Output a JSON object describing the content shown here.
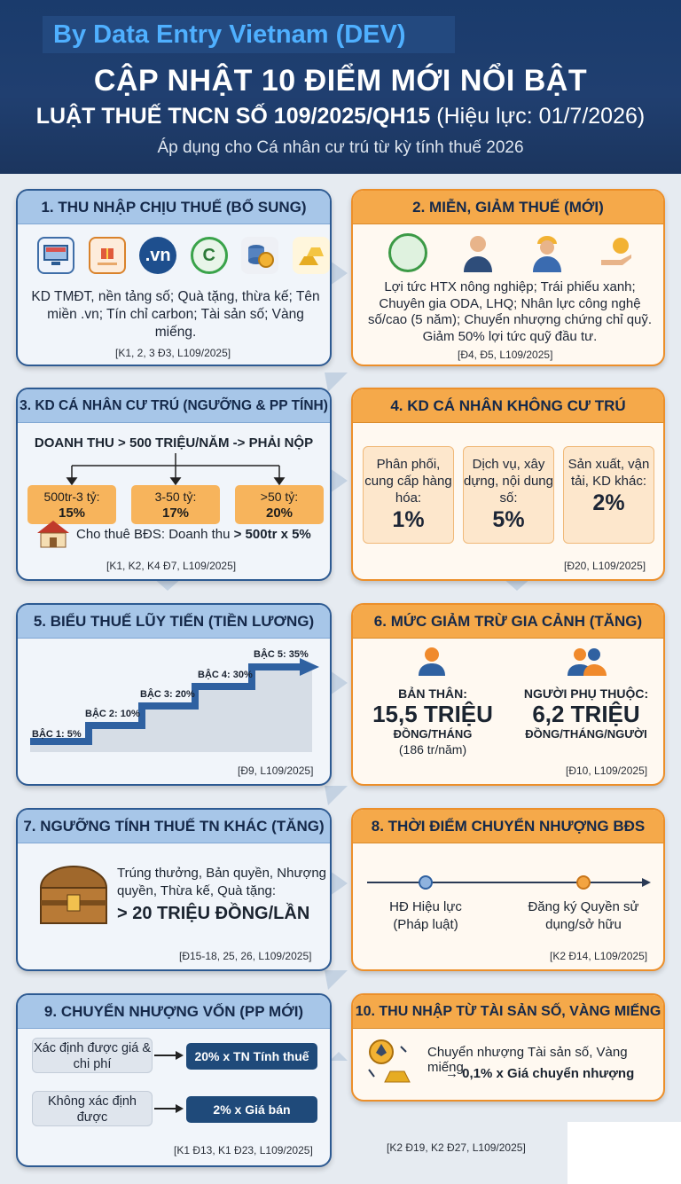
{
  "header": {
    "byline": "By Data Entry Vietnam (DEV)",
    "title": "CẬP NHẬT 10 ĐIỂM MỚI NỔI BẬT",
    "subtitle_bold": "LUẬT THUẾ TNCN SỐ 109/2025/QH15",
    "subtitle_light": "(Hiệu lực: 01/7/2026)",
    "apply": "Áp dụng cho Cá nhân cư trú từ kỳ tính thuế 2026"
  },
  "s1": {
    "title": "1. THU NHẬP CHỊU THUẾ (BỔ SUNG)",
    "icon_vn": ".vn",
    "text": "KD TMĐT, nền tảng số; Quà tặng, thừa kế; Tên miền .vn; Tín chỉ carbon; Tài sản số; Vàng miếng.",
    "ref": "[K1, 2, 3 Đ3, L109/2025]"
  },
  "s2": {
    "title": "2. MIỄN, GIẢM THUẾ (MỚI)",
    "text": "Lợi tức HTX nông nghiệp; Trái phiếu xanh; Chuyên gia ODA, LHQ; Nhân lực công nghệ số/cao (5 năm); Chuyển nhượng chứng chỉ quỹ. Giảm 50% lợi tức quỹ đầu tư.",
    "ref": "[Đ4, Đ5, L109/2025]"
  },
  "s3": {
    "title": "3. KD CÁ NHÂN CƯ TRÚ (NGƯỠNG & PP TÍNH)",
    "threshold": "DOANH THU > 500 TRIỆU/NĂM -> PHẢI NỘP",
    "tiers": [
      {
        "range": "500tr-3 tỷ:",
        "rate": "15%"
      },
      {
        "range": "3-50 tỷ:",
        "rate": "17%"
      },
      {
        "range": ">50 tỷ:",
        "rate": "20%"
      }
    ],
    "rent_text": "Cho thuê BĐS: Doanh thu ",
    "rent_bold": "> 500tr x 5%",
    "ref": "[K1, K2, K4 Đ7, L109/2025]"
  },
  "s4": {
    "title": "4. KD CÁ NHÂN KHÔNG CƯ TRÚ",
    "items": [
      {
        "label": "Phân phối, cung cấp hàng hóa:",
        "pct": "1%"
      },
      {
        "label": "Dịch vụ, xây dựng, nội dung số:",
        "pct": "5%"
      },
      {
        "label": "Sản xuất, vận tải, KD khác:",
        "pct": "2%"
      }
    ],
    "ref": "[Đ20, L109/2025]"
  },
  "s5": {
    "title": "5. BIỂU THUẾ LŨY TIẾN (TIỀN LƯƠNG)",
    "steps": [
      "BẬC 1: 5%",
      "BẬC 2: 10%",
      "BẬC 3: 20%",
      "BẬC 4: 30%",
      "BẬC 5: 35%"
    ],
    "ref": "[Đ9, L109/2025]"
  },
  "s6": {
    "title": "6. MỨC GIẢM TRỪ GIA CẢNH (TĂNG)",
    "self_label": "BẢN THÂN:",
    "self_amount": "15,5 TRIỆU",
    "self_unit": "ĐỒNG/THÁNG",
    "self_year": "(186 tr/năm)",
    "dep_label": "NGƯỜI PHỤ THUỘC:",
    "dep_amount": "6,2 TRIỆU",
    "dep_unit": "ĐỒNG/THÁNG/NGƯỜI",
    "ref": "[Đ10, L109/2025]"
  },
  "s7": {
    "title": "7. NGƯỠNG TÍNH THUẾ TN KHÁC (TĂNG)",
    "text": "Trúng thưởng, Bản quyền, Nhượng quyền, Thừa kế, Quà tặng:",
    "amount": "> 20 TRIỆU ĐỒNG/LẦN",
    "ref": "[Đ15-18, 25, 26, L109/2025]"
  },
  "s8": {
    "title": "8. THỜI ĐIỂM CHUYỂN NHƯỢNG BĐS",
    "point1": "HĐ Hiệu lực (Pháp luật)",
    "point2": "Đăng ký Quyền sử dụng/sở hữu",
    "ref": "[K2 Đ14, L109/2025]"
  },
  "s9": {
    "title": "9. CHUYỂN NHƯỢNG VỐN (PP MỚI)",
    "case1": "Xác định được giá & chi phí",
    "result1": "20% x TN Tính thuế",
    "case2": "Không xác định được",
    "result2": "2% x Giá bán",
    "ref": "[K1 Đ13, K1 Đ23, L109/2025]"
  },
  "s10": {
    "title": "10. THU NHẬP TỪ TÀI SẢN SỐ, VÀNG MIẾNG",
    "text1": "Chuyển nhượng Tài sản số, Vàng miếng",
    "text2": "→ 0,1% x Giá chuyển nhượng",
    "ref": "[K2 Đ19, K2 Đ27, L109/2025]"
  }
}
